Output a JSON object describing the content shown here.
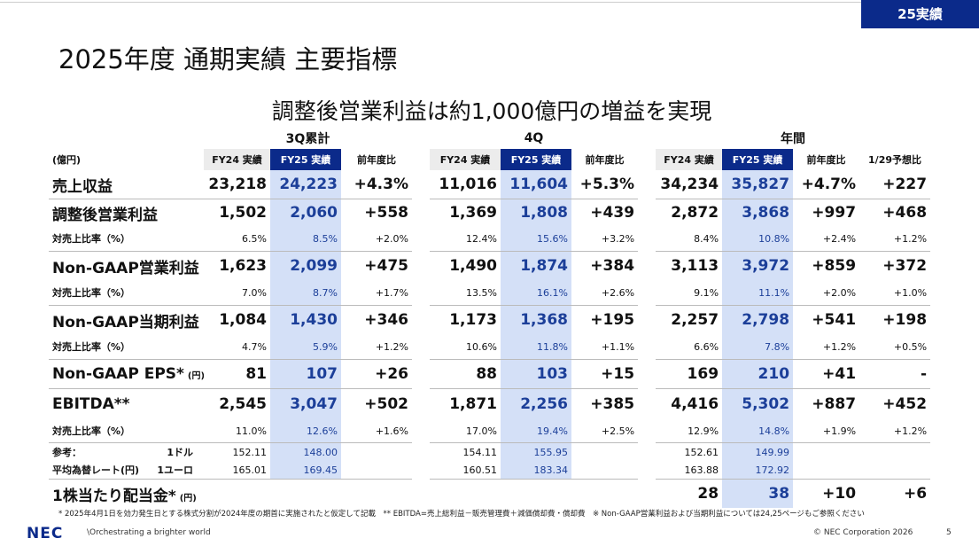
{
  "badge": "25実績",
  "title": "2025年度 通期実績 主要指標",
  "headline": "調整後営業利益は約1,000億円の増益を実現",
  "table": {
    "unit": "(億円)",
    "groups": [
      "3Q累計",
      "4Q",
      "年間"
    ],
    "columns": [
      [
        "FY24 実績",
        "FY25 実績",
        "前年度比"
      ],
      [
        "FY24 実績",
        "FY25 実績",
        "前年度比"
      ],
      [
        "FY24 実績",
        "FY25 実績",
        "前年度比",
        "1/29予想比"
      ]
    ],
    "rows": [
      {
        "label": "売上収益",
        "cells": [
          [
            "23,218",
            "24,223",
            "+4.3%"
          ],
          [
            "11,016",
            "11,604",
            "+5.3%"
          ],
          [
            "34,234",
            "35,827",
            "+4.7%",
            "+227"
          ]
        ]
      },
      {
        "label": "調整後営業利益",
        "cells": [
          [
            "1,502",
            "2,060",
            "+558"
          ],
          [
            "1,369",
            "1,808",
            "+439"
          ],
          [
            "2,872",
            "3,868",
            "+997",
            "+468"
          ]
        ]
      },
      {
        "label": "対売上比率（%）",
        "cells": [
          [
            "6.5%",
            "8.5%",
            "+2.0%"
          ],
          [
            "12.4%",
            "15.6%",
            "+3.2%"
          ],
          [
            "8.4%",
            "10.8%",
            "+2.4%",
            "+1.2%"
          ]
        ]
      },
      {
        "label": "Non-GAAP営業利益",
        "cells": [
          [
            "1,623",
            "2,099",
            "+475"
          ],
          [
            "1,490",
            "1,874",
            "+384"
          ],
          [
            "3,113",
            "3,972",
            "+859",
            "+372"
          ]
        ]
      },
      {
        "label": "対売上比率（%）",
        "cells": [
          [
            "7.0%",
            "8.7%",
            "+1.7%"
          ],
          [
            "13.5%",
            "16.1%",
            "+2.6%"
          ],
          [
            "9.1%",
            "11.1%",
            "+2.0%",
            "+1.0%"
          ]
        ]
      },
      {
        "label": "Non-GAAP当期利益",
        "cells": [
          [
            "1,084",
            "1,430",
            "+346"
          ],
          [
            "1,173",
            "1,368",
            "+195"
          ],
          [
            "2,257",
            "2,798",
            "+541",
            "+198"
          ]
        ]
      },
      {
        "label": "対売上比率（%）",
        "cells": [
          [
            "4.7%",
            "5.9%",
            "+1.2%"
          ],
          [
            "10.6%",
            "11.8%",
            "+1.1%"
          ],
          [
            "6.6%",
            "7.8%",
            "+1.2%",
            "+0.5%"
          ]
        ]
      },
      {
        "label": "Non-GAAP EPS*",
        "unit": "(円)",
        "cells": [
          [
            "81",
            "107",
            "+26"
          ],
          [
            "88",
            "103",
            "+15"
          ],
          [
            "169",
            "210",
            "+41",
            "-"
          ]
        ]
      },
      {
        "label": "EBITDA**",
        "cells": [
          [
            "2,545",
            "3,047",
            "+502"
          ],
          [
            "1,871",
            "2,256",
            "+385"
          ],
          [
            "4,416",
            "5,302",
            "+887",
            "+452"
          ]
        ]
      },
      {
        "label": "対売上比率（%）",
        "cells": [
          [
            "11.0%",
            "12.6%",
            "+1.6%"
          ],
          [
            "17.0%",
            "19.4%",
            "+2.5%"
          ],
          [
            "12.9%",
            "14.8%",
            "+1.9%",
            "+1.2%"
          ]
        ]
      },
      {
        "label": "参考：",
        "sublabel": "1ドル",
        "cells": [
          [
            "152.11",
            "148.00",
            null
          ],
          [
            "154.11",
            "155.95",
            null
          ],
          [
            "152.61",
            "149.99",
            null,
            null
          ]
        ]
      },
      {
        "label": "平均為替レート(円)",
        "sublabel": "1ユーロ",
        "cells": [
          [
            "165.01",
            "169.45",
            null
          ],
          [
            "160.51",
            "183.34",
            null
          ],
          [
            "163.88",
            "172.92",
            null,
            null
          ]
        ]
      },
      {
        "label": "1株当たり配当金*",
        "unit": "(円)",
        "cells": [
          [
            null,
            null,
            null
          ],
          [
            null,
            null,
            null
          ],
          [
            "28",
            "38",
            "+10",
            "+6"
          ]
        ]
      }
    ]
  },
  "footnote": "* 2025年4月1日を効力発生日とする株式分割が2024年度の期首に実施されたと仮定して記載　** EBITDA=売上総利益－販売管理費＋減価償却費・償却費　※ Non-GAAP営業利益および当期利益については24,25ページもご参照ください",
  "footer": {
    "logo": "NEC",
    "tagline": "\\Orchestrating a brighter world",
    "copyright": "© NEC Corporation 2026",
    "page": "5"
  }
}
